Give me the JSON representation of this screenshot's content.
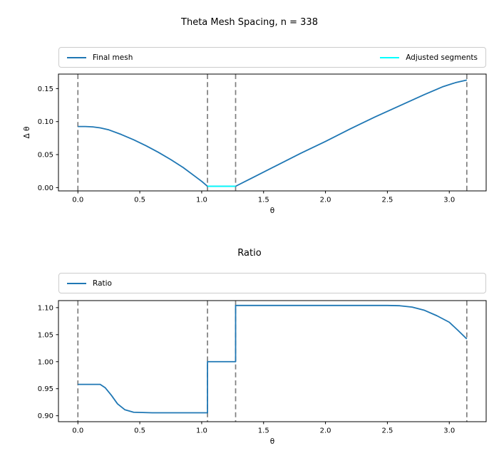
{
  "figure": {
    "title": "Theta Mesh Spacing, n = 338"
  },
  "colors": {
    "final_mesh": "#1f77b4",
    "adjusted_segments": "#00ffff",
    "ratio": "#1f77b4",
    "dashed_guide": "#7f7f7f",
    "axis": "#000000",
    "legend_border": "#cccccc"
  },
  "chart_data": [
    {
      "type": "line",
      "title": "Theta Mesh Spacing, n = 338",
      "xlabel": "θ",
      "ylabel": "Δ θ",
      "xlim": [
        -0.157,
        3.298
      ],
      "ylim": [
        -0.005,
        0.172
      ],
      "xticks": [
        0.0,
        0.5,
        1.0,
        1.5,
        2.0,
        2.5,
        3.0
      ],
      "xtick_labels": [
        "0.0",
        "0.5",
        "1.0",
        "1.5",
        "2.0",
        "2.5",
        "3.0"
      ],
      "yticks": [
        0.0,
        0.05,
        0.1,
        0.15
      ],
      "ytick_labels": [
        "0.00",
        "0.05",
        "0.10",
        "0.15"
      ],
      "grid": false,
      "legend_position": "above-expand",
      "vlines": [
        0,
        1.047,
        1.274,
        3.1416
      ],
      "legend": [
        {
          "label": "Final mesh",
          "color": "#1f77b4"
        },
        {
          "label": "Adjusted segments",
          "color": "#00ffff"
        }
      ],
      "series": [
        {
          "name": "Final mesh",
          "color": "#1f77b4",
          "x": [
            0,
            0.06,
            0.12,
            0.18,
            0.25,
            0.35,
            0.45,
            0.55,
            0.65,
            0.75,
            0.85,
            0.95,
            1.0,
            1.047,
            1.274,
            1.4,
            1.6,
            1.8,
            2.0,
            2.2,
            2.4,
            2.6,
            2.8,
            2.95,
            3.05,
            3.1416
          ],
          "y": [
            0.0925,
            0.0925,
            0.092,
            0.0905,
            0.0875,
            0.0805,
            0.0725,
            0.0635,
            0.0535,
            0.0425,
            0.0305,
            0.0165,
            0.0095,
            0.002,
            0.002,
            0.014,
            0.033,
            0.052,
            0.07,
            0.089,
            0.107,
            0.124,
            0.141,
            0.153,
            0.159,
            0.163
          ]
        },
        {
          "name": "Adjusted segments",
          "color": "#00ffff",
          "x": [
            1.047,
            1.274
          ],
          "y": [
            0.002,
            0.002
          ]
        }
      ]
    },
    {
      "type": "line",
      "title": "Ratio",
      "xlabel": "θ",
      "ylabel": "",
      "xlim": [
        -0.157,
        3.298
      ],
      "ylim": [
        0.889,
        1.113
      ],
      "xticks": [
        0.0,
        0.5,
        1.0,
        1.5,
        2.0,
        2.5,
        3.0
      ],
      "xtick_labels": [
        "0.0",
        "0.5",
        "1.0",
        "1.5",
        "2.0",
        "2.5",
        "3.0"
      ],
      "yticks": [
        0.9,
        0.95,
        1.0,
        1.05,
        1.1
      ],
      "ytick_labels": [
        "0.90",
        "0.95",
        "1.00",
        "1.05",
        "1.10"
      ],
      "grid": false,
      "legend_position": "above-expand",
      "vlines": [
        0,
        1.047,
        1.274,
        3.1416
      ],
      "legend": [
        {
          "label": "Ratio",
          "color": "#1f77b4"
        }
      ],
      "series": [
        {
          "name": "Ratio",
          "color": "#1f77b4",
          "x": [
            0,
            0.18,
            0.22,
            0.27,
            0.32,
            0.38,
            0.45,
            0.6,
            0.8,
            1.0,
            1.047,
            1.047,
            1.27,
            1.274,
            1.274,
            1.4,
            1.8,
            2.2,
            2.5,
            2.6,
            2.7,
            2.8,
            2.9,
            3.0,
            3.07,
            3.1416
          ],
          "y": [
            0.958,
            0.958,
            0.952,
            0.938,
            0.922,
            0.911,
            0.9065,
            0.9055,
            0.9055,
            0.9055,
            0.9055,
            1.0,
            1.0,
            1.0,
            1.104,
            1.104,
            1.104,
            1.104,
            1.104,
            1.1035,
            1.101,
            1.095,
            1.085,
            1.073,
            1.058,
            1.042
          ]
        }
      ]
    }
  ]
}
